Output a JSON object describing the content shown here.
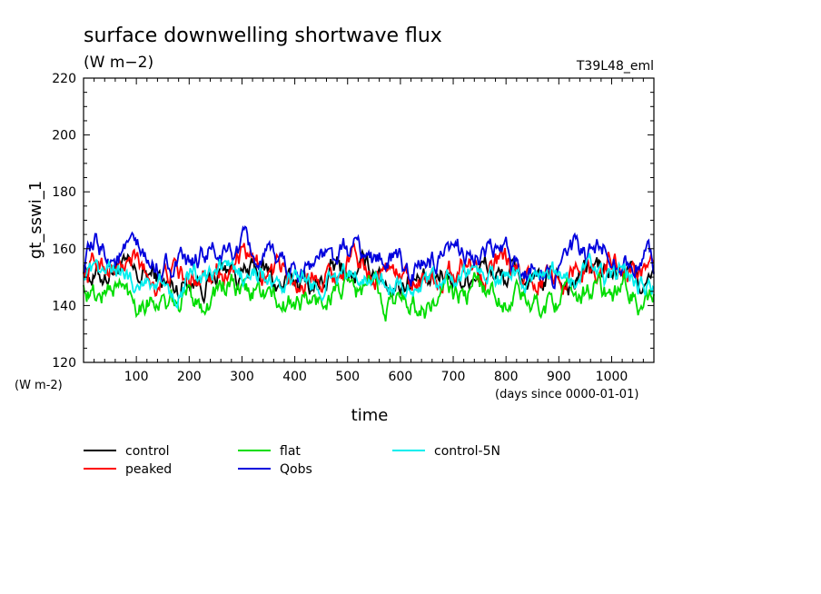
{
  "chart_data": {
    "type": "line",
    "title": "surface downwelling shortwave flux",
    "units": "(W m−2)",
    "model_label": "T39L48_eml",
    "xlabel": "time",
    "ylabel": "gt_sswi_1",
    "x_units": "(days since 0000-01-01)",
    "y_units": "(W m-2)",
    "xlim": [
      0,
      1080
    ],
    "ylim": [
      120,
      220
    ],
    "x_ticks": [
      100,
      200,
      300,
      400,
      500,
      600,
      700,
      800,
      900,
      1000
    ],
    "y_ticks": [
      120,
      140,
      160,
      180,
      200,
      220
    ],
    "x_tick_labels": [
      "100",
      "200",
      "300",
      "400",
      "500",
      "600",
      "700",
      "800",
      "900",
      "1000"
    ],
    "y_tick_labels": [
      "120",
      "140",
      "160",
      "180",
      "200",
      "220"
    ],
    "legend_position": "bottom",
    "series": [
      {
        "name": "control",
        "color": "#000000",
        "mean": 150,
        "amplitude": 7,
        "min": 135,
        "max": 163
      },
      {
        "name": "peaked",
        "color": "#ff0000",
        "mean": 152,
        "amplitude": 7,
        "min": 134,
        "max": 163
      },
      {
        "name": "flat",
        "color": "#00dd00",
        "mean": 143,
        "amplitude": 7,
        "min": 130,
        "max": 157
      },
      {
        "name": "Qobs",
        "color": "#0000dd",
        "mean": 156,
        "amplitude": 7,
        "min": 140,
        "max": 170
      },
      {
        "name": "control-5N",
        "color": "#00eeee",
        "mean": 149,
        "amplitude": 6,
        "min": 138,
        "max": 162
      }
    ]
  }
}
